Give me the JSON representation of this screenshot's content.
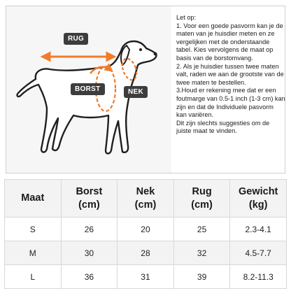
{
  "figure": {
    "labels": {
      "back": "RUG",
      "chest": "BORST",
      "neck": "NEK"
    },
    "colors": {
      "arrow": "#f07c2a",
      "tag_bg": "#3d3d3d",
      "outline": "#1f1f1f"
    }
  },
  "notes": [
    "Let op:",
    "1. Voor een goede pasvorm kan je de maten van je huisdier meten en ze vergelijken met de onderstaande tabel. Kies vervolgens de maat op basis van de borstomvang.",
    "2. Als je huisdier tussen twee maten valt, raden we aan de grootste van de twee maten te bestellen.",
    "3.Houd er rekening mee dat er een foutmarge van 0.5-1 inch (1-3 cm) kan zijn en dat de Individuele pasvorm kan variëren.",
    "Dit zijn slechts suggesties om de juiste maat te vinden."
  ],
  "table": {
    "headers": [
      {
        "line1": "Maat",
        "line2": ""
      },
      {
        "line1": "Borst",
        "line2": "(cm)"
      },
      {
        "line1": "Nek",
        "line2": "(cm)"
      },
      {
        "line1": "Rug",
        "line2": "(cm)"
      },
      {
        "line1": "Gewicht",
        "line2": "(kg)"
      }
    ],
    "rows": [
      [
        "S",
        "26",
        "20",
        "25",
        "2.3-4.1"
      ],
      [
        "M",
        "30",
        "28",
        "32",
        "4.5-7.7"
      ],
      [
        "L",
        "36",
        "31",
        "39",
        "8.2-11.3"
      ]
    ]
  }
}
